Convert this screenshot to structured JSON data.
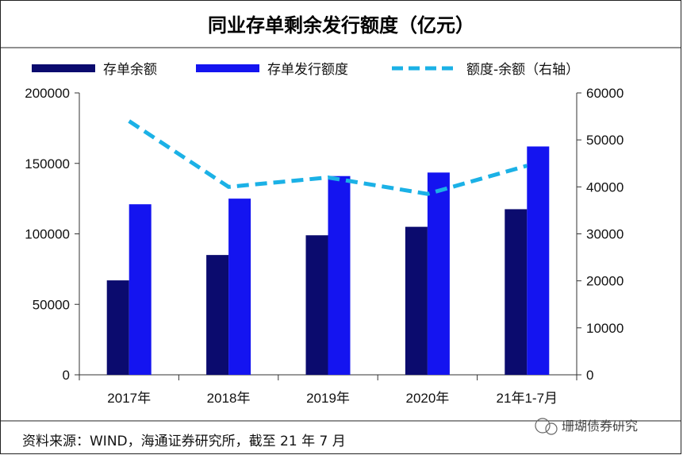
{
  "chart_data": {
    "type": "bar",
    "title": "同业存单剩余发行额度（亿元）",
    "categories": [
      "2017年",
      "2018年",
      "2019年",
      "2020年",
      "21年1-7月"
    ],
    "series": [
      {
        "name": "存单余额",
        "kind": "bar",
        "axis": "left",
        "color": "#0b0b6e",
        "values": [
          67000,
          85000,
          99000,
          105000,
          117500
        ]
      },
      {
        "name": "存单发行额度",
        "kind": "bar",
        "axis": "left",
        "color": "#1414f0",
        "values": [
          121000,
          125000,
          141000,
          143500,
          162000
        ]
      },
      {
        "name": "额度-余额（右轴）",
        "kind": "line",
        "axis": "right",
        "color": "#1bb1e6",
        "values": [
          54000,
          40000,
          42000,
          38500,
          44500
        ]
      }
    ],
    "y_left": {
      "min": 0,
      "max": 200000,
      "ticks": [
        0,
        50000,
        100000,
        150000,
        200000
      ]
    },
    "y_right": {
      "min": 0,
      "max": 60000,
      "ticks": [
        0,
        10000,
        20000,
        30000,
        40000,
        50000,
        60000
      ]
    },
    "grid": false,
    "legend_position": "top"
  },
  "source": "资料来源：WIND，海通证券研究所，截至 21 年 7 月",
  "watermark": "珊瑚债券研究"
}
